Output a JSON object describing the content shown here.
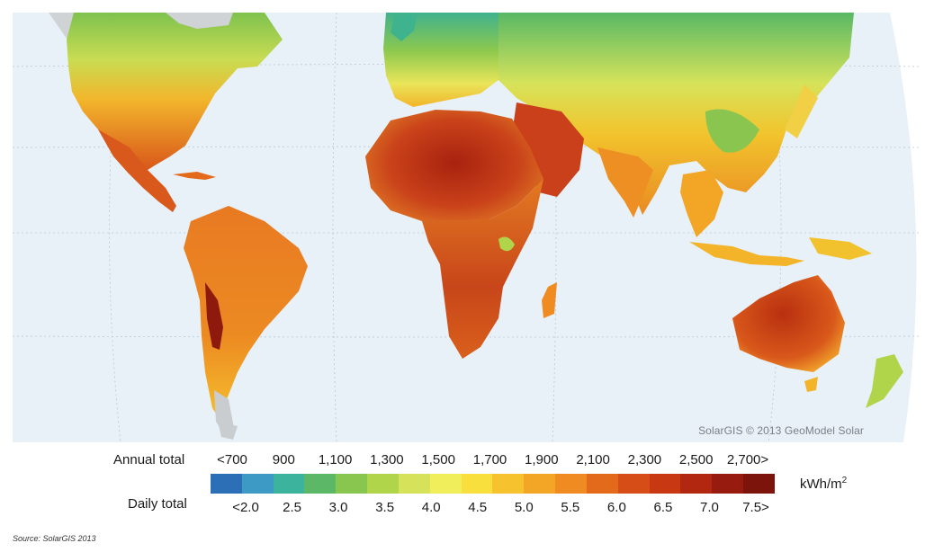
{
  "map": {
    "credit": "SolarGIS © 2013 GeoModel Solar",
    "ocean_color": "#e8f1f8"
  },
  "legend": {
    "annual_label": "Annual total",
    "daily_label": "Daily total",
    "unit_base": "kWh/m",
    "unit_exp": "2",
    "annual_ticks": [
      "<700",
      "900",
      "1,100",
      "1,300",
      "1,500",
      "1,700",
      "1,900",
      "2,100",
      "2,300",
      "2,500",
      "2,700>"
    ],
    "daily_ticks": [
      "<2.0",
      "2.5",
      "3.0",
      "3.5",
      "4.0",
      "4.5",
      "5.0",
      "5.5",
      "6.0",
      "6.5",
      "7.0",
      "7.5>"
    ],
    "colors": [
      "#2c6fb6",
      "#3c9ac5",
      "#3bb39d",
      "#5cb867",
      "#88c64f",
      "#b0d44a",
      "#d6e35a",
      "#f1ee5b",
      "#f8df3d",
      "#f6c22d",
      "#f3a625",
      "#ef8b20",
      "#e3691b",
      "#d74d17",
      "#c73813",
      "#b12710",
      "#971b0e",
      "#7d140c"
    ]
  },
  "source": "Source: SolarGIS 2013"
}
